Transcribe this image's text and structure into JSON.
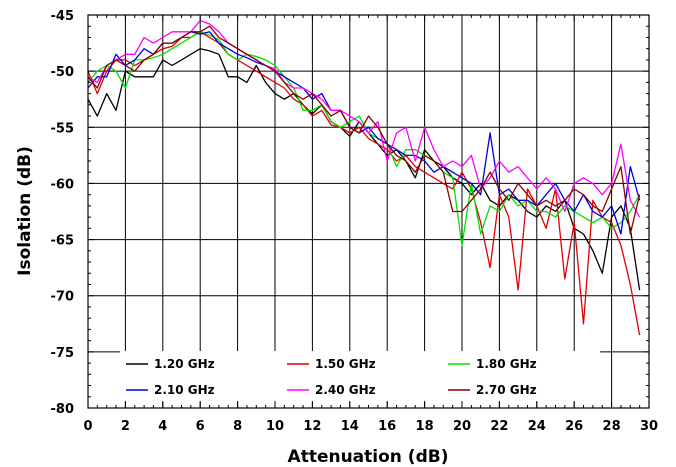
{
  "chart_data": {
    "type": "line",
    "xlabel": "Attenuation (dB)",
    "ylabel": "Isolation (dB)",
    "xlim": [
      0,
      30
    ],
    "ylim": [
      -80,
      -45
    ],
    "xticks": [
      0,
      2,
      4,
      6,
      8,
      10,
      12,
      14,
      16,
      18,
      20,
      22,
      24,
      26,
      28,
      30
    ],
    "xtick_labels": [
      "0",
      "2",
      "4",
      "6",
      "8",
      "10",
      "12",
      "14",
      "16",
      "18",
      "20",
      "22",
      "24",
      "26",
      "28",
      "30"
    ],
    "yticks": [
      -80,
      -75,
      -70,
      -65,
      -60,
      -55,
      -50,
      -45
    ],
    "ytick_labels": [
      "-80",
      "-75",
      "-70",
      "-65",
      "-60",
      "-55",
      "-50",
      "-45"
    ],
    "grid": true,
    "legend_position": "bottom, two rows of three",
    "x": [
      0,
      0.5,
      1,
      1.5,
      2,
      2.5,
      3,
      3.5,
      4,
      4.5,
      5,
      5.5,
      6,
      6.5,
      7,
      7.5,
      8,
      8.5,
      9,
      9.5,
      10,
      10.5,
      11,
      11.5,
      12,
      12.5,
      13,
      13.5,
      14,
      14.5,
      15,
      15.5,
      16,
      16.5,
      17,
      17.5,
      18,
      18.5,
      19,
      19.5,
      20,
      20.5,
      21,
      21.5,
      22,
      22.5,
      23,
      23.5,
      24,
      24.5,
      25,
      25.5,
      26,
      26.5,
      27,
      27.5,
      28,
      28.5,
      29,
      29.5
    ],
    "series": [
      {
        "name": "1.20 GHz",
        "color": "#000000",
        "values": [
          -52.5,
          -54,
          -52,
          -53.5,
          -50,
          -50.5,
          -50.5,
          -50.5,
          -49,
          -49.5,
          -49,
          -48.5,
          -48,
          -48.2,
          -48.5,
          -50.5,
          -50.5,
          -51,
          -49.5,
          -51,
          -52,
          -52.5,
          -52,
          -53,
          -53.8,
          -53,
          -54.5,
          -55,
          -55.8,
          -54.5,
          -55.5,
          -56.5,
          -57.5,
          -57,
          -58,
          -59.5,
          -57,
          -58,
          -58.5,
          -59.5,
          -60,
          -61,
          -60,
          -61.5,
          -62,
          -61,
          -61.5,
          -62.5,
          -63,
          -62,
          -62.5,
          -61.5,
          -64,
          -64.5,
          -66,
          -68,
          -63,
          -62,
          -64,
          -69.5
        ]
      },
      {
        "name": "1.50 GHz",
        "color": "#e00000",
        "values": [
          -50,
          -52,
          -50,
          -49,
          -49,
          -49.5,
          -49,
          -48.5,
          -48,
          -47.8,
          -47,
          -47,
          -46.5,
          -47,
          -47.5,
          -48.5,
          -49,
          -49.5,
          -50,
          -50.5,
          -51,
          -51.5,
          -52.5,
          -53,
          -54,
          -53.5,
          -54.8,
          -55,
          -55.5,
          -55,
          -56,
          -56.5,
          -57,
          -58,
          -57.5,
          -58.5,
          -59,
          -59.5,
          -60,
          -60.5,
          -59,
          -60.5,
          -63.5,
          -67.5,
          -61,
          -63,
          -69.5,
          -60.5,
          -62,
          -64,
          -60.5,
          -68.5,
          -63.5,
          -72.5,
          -61.5,
          -63,
          -63.5,
          -65.5,
          -69,
          -73.5
        ]
      },
      {
        "name": "1.80 GHz",
        "color": "#00e000",
        "values": [
          -51,
          -50,
          -49.5,
          -50,
          -51.5,
          -49,
          -49,
          -48.8,
          -48.5,
          -48,
          -47.5,
          -47,
          -46.5,
          -46.8,
          -47.2,
          -48.5,
          -49,
          -48.5,
          -48.7,
          -49,
          -49.5,
          -50.5,
          -51.5,
          -53.5,
          -53.5,
          -53,
          -54.5,
          -55,
          -54.5,
          -54,
          -55.5,
          -56,
          -56.5,
          -58.5,
          -57,
          -57,
          -57.5,
          -58,
          -59,
          -59.5,
          -65.5,
          -60,
          -64.5,
          -62,
          -62.5,
          -61,
          -62,
          -61.5,
          -62.5,
          -62.5,
          -63,
          -62,
          -62.5,
          -63,
          -63.5,
          -63,
          -64,
          -63.5,
          -62.5,
          -61
        ]
      },
      {
        "name": "2.10 GHz",
        "color": "#0000e0",
        "values": [
          -51.5,
          -50.5,
          -50.5,
          -48.5,
          -49.5,
          -49,
          -48,
          -48.5,
          -47.5,
          -47.5,
          -47,
          -46.5,
          -46.7,
          -46.5,
          -47.5,
          -48,
          -48.5,
          -48.8,
          -49.2,
          -49.5,
          -50,
          -50.5,
          -51,
          -51.5,
          -52.5,
          -52,
          -53.5,
          -53.5,
          -55,
          -55.5,
          -55,
          -56,
          -56.5,
          -57,
          -57.5,
          -57.5,
          -58,
          -59,
          -58.5,
          -59,
          -59.5,
          -60,
          -61,
          -55.5,
          -61,
          -60.5,
          -61.5,
          -61.5,
          -62,
          -61,
          -60,
          -61.5,
          -62.5,
          -61,
          -62.5,
          -63,
          -62,
          -64.5,
          -58.5,
          -61.5
        ]
      },
      {
        "name": "2.40 GHz",
        "color": "#ff00ff",
        "values": [
          -50.5,
          -51,
          -49.5,
          -49,
          -48.5,
          -48.5,
          -47,
          -47.5,
          -47,
          -46.5,
          -46.5,
          -46.5,
          -45.5,
          -45.8,
          -46.5,
          -47.5,
          -48,
          -48.5,
          -49,
          -49.5,
          -49.8,
          -51,
          -51.5,
          -51.5,
          -52,
          -52.5,
          -53.5,
          -53.5,
          -54,
          -54.5,
          -55.5,
          -54.5,
          -58,
          -55.5,
          -55,
          -58,
          -55,
          -57,
          -58.5,
          -58,
          -58.5,
          -57.5,
          -60.5,
          -59.5,
          -58,
          -59,
          -58.5,
          -59.5,
          -60.5,
          -59.5,
          -60.5,
          -62.5,
          -60,
          -59.5,
          -60,
          -61,
          -60,
          -56.5,
          -61.5,
          -63
        ]
      },
      {
        "name": "2.70 GHz",
        "color": "#8b0000",
        "values": [
          -50.5,
          -51.5,
          -49.5,
          -49,
          -49.5,
          -50,
          -49,
          -48.5,
          -47.5,
          -47.5,
          -47,
          -46.5,
          -46.5,
          -46,
          -47,
          -47.5,
          -48,
          -48.5,
          -49,
          -49.5,
          -50,
          -51,
          -52,
          -52.5,
          -52,
          -53,
          -54,
          -53.5,
          -55,
          -55.5,
          -54,
          -55,
          -56.5,
          -57.5,
          -58,
          -59,
          -57.5,
          -58,
          -59,
          -62.5,
          -62.5,
          -61.5,
          -60.5,
          -59,
          -60.5,
          -61.5,
          -60,
          -61,
          -62,
          -61.5,
          -62,
          -61.5,
          -60.5,
          -61,
          -62,
          -62.5,
          -60.5,
          -58.5,
          -64.5,
          -61
        ]
      }
    ]
  }
}
